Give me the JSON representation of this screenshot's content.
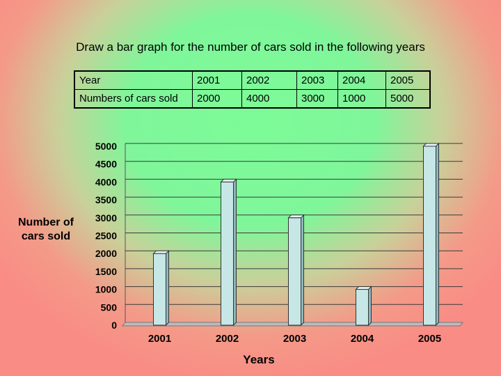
{
  "title": "Draw a bar graph for the number of cars sold in the following years",
  "table": {
    "rows": [
      [
        "Year",
        "2001",
        "2002",
        "2003",
        "2004",
        "2005"
      ],
      [
        "Numbers of cars sold",
        "2000",
        "4000",
        "3000",
        "1000",
        "5000"
      ]
    ]
  },
  "chart_data": {
    "type": "bar",
    "categories": [
      "2001",
      "2002",
      "2003",
      "2004",
      "2005"
    ],
    "values": [
      2000,
      4000,
      3000,
      1000,
      5000
    ],
    "xlabel": "Years",
    "ylabel": "Number of cars sold",
    "ylim": [
      0,
      5000
    ],
    "yticks": [
      "0",
      "500",
      "1000",
      "1500",
      "2000",
      "2500",
      "3000",
      "3500",
      "4000",
      "4500",
      "5000"
    ],
    "grid": true,
    "colors": {
      "bar_front": "#c7e6e6",
      "bar_side": "#8fb7bd",
      "bar_top": "#e7f7f7",
      "axis_floor": "#b9bcbf"
    }
  }
}
